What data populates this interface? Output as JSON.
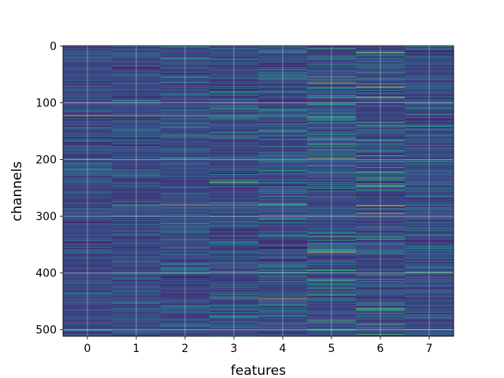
{
  "chart_data": {
    "type": "heatmap",
    "title": "",
    "xlabel": "features",
    "ylabel": "channels",
    "x_categories": [
      "0",
      "1",
      "2",
      "3",
      "4",
      "5",
      "6",
      "7"
    ],
    "y_ticks": [
      "0",
      "100",
      "200",
      "300",
      "400",
      "500"
    ],
    "y_tick_values": [
      0,
      100,
      200,
      300,
      400,
      500
    ],
    "rows": 512,
    "columns": 8,
    "y_inverted": true,
    "grid": true,
    "colormap": "viridis",
    "colormap_stops": [
      "#440154",
      "#3b528b",
      "#21918c",
      "#5ec962",
      "#fde725"
    ],
    "background_level": 0.22,
    "highlighted_cells": [
      {
        "feature": 0,
        "channel": 123,
        "level": 0.95
      },
      {
        "feature": 1,
        "channel": 123,
        "level": 0.85
      },
      {
        "feature": 2,
        "channel": 123,
        "level": 0.75
      },
      {
        "feature": 3,
        "channel": 123,
        "level": 0.7
      },
      {
        "feature": 4,
        "channel": 123,
        "level": 0.7
      },
      {
        "feature": 1,
        "channel": 280,
        "level": 0.7
      },
      {
        "feature": 2,
        "channel": 280,
        "level": 0.9
      },
      {
        "feature": 3,
        "channel": 280,
        "level": 0.7
      },
      {
        "feature": 4,
        "channel": 280,
        "level": 0.7
      },
      {
        "feature": 3,
        "channel": 240,
        "level": 0.8
      },
      {
        "feature": 4,
        "channel": 446,
        "level": 0.95
      },
      {
        "feature": 5,
        "channel": 65,
        "level": 0.95
      },
      {
        "feature": 5,
        "channel": 198,
        "level": 0.85
      },
      {
        "feature": 5,
        "channel": 363,
        "level": 1.0
      },
      {
        "feature": 6,
        "channel": 12,
        "level": 0.85
      },
      {
        "feature": 6,
        "channel": 72,
        "level": 0.9
      },
      {
        "feature": 6,
        "channel": 90,
        "level": 0.95
      },
      {
        "feature": 6,
        "channel": 282,
        "level": 0.95
      },
      {
        "feature": 6,
        "channel": 295,
        "level": 0.9
      },
      {
        "feature": 7,
        "channel": 398,
        "level": 0.75
      },
      {
        "feature": 7,
        "channel": 500,
        "level": 0.7
      }
    ]
  }
}
